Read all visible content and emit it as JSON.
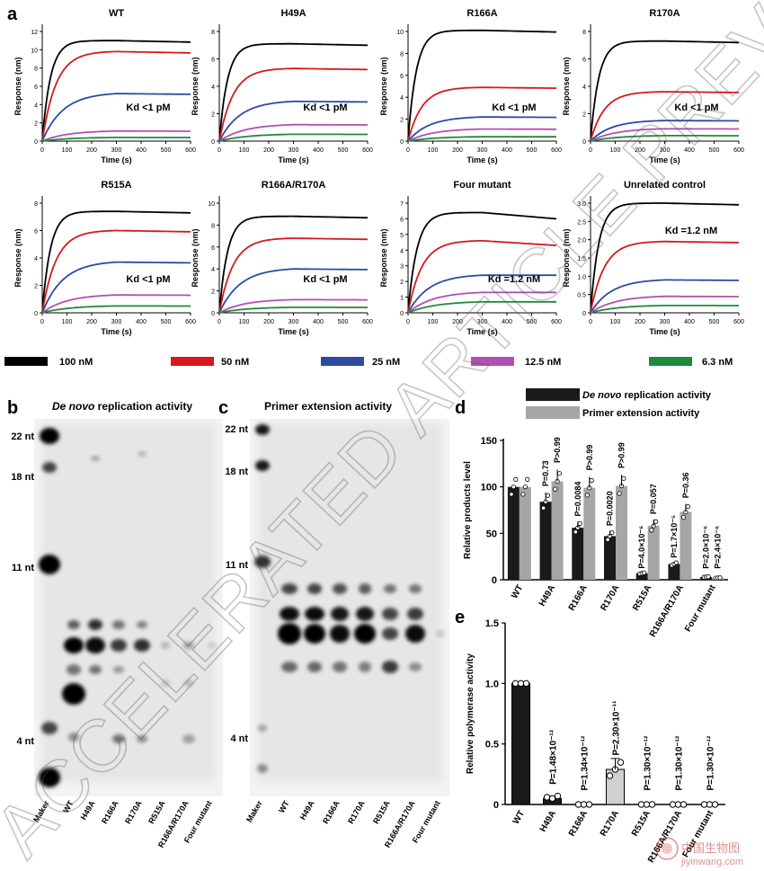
{
  "panel_letters": {
    "a": "a",
    "b": "b",
    "c": "c",
    "d": "d",
    "e": "e"
  },
  "bli_common": {
    "ylabel": "Response (nm)",
    "xlabel": "Time (s)",
    "xticks": [
      0,
      100,
      200,
      300,
      400,
      500,
      600
    ]
  },
  "concentrations": [
    {
      "label": "100 nM",
      "color": "#000000"
    },
    {
      "label": "50 nM",
      "color": "#d7191c"
    },
    {
      "label": "25 nM",
      "color": "#2c4ba0"
    },
    {
      "label": "12.5 nM",
      "color": "#b34fb3"
    },
    {
      "label": "6.3 nM",
      "color": "#1f8a3c"
    }
  ],
  "chart_data": [
    {
      "type": "line",
      "title": "WT",
      "ylim": [
        0,
        12
      ],
      "yticks": [
        0,
        2,
        4,
        6,
        8,
        10,
        12
      ],
      "kd": "Kd <1 pM",
      "series_plateau": [
        11.0,
        9.8,
        5.2,
        1.1,
        0.4
      ]
    },
    {
      "type": "line",
      "title": "H49A",
      "ylim": [
        0,
        8
      ],
      "yticks": [
        0,
        2,
        4,
        6,
        8
      ],
      "kd": "Kd <1 pM",
      "series_plateau": [
        7.1,
        5.3,
        2.9,
        1.2,
        0.5
      ]
    },
    {
      "type": "line",
      "title": "R166A",
      "ylim": [
        0,
        10
      ],
      "yticks": [
        0,
        2,
        4,
        6,
        8,
        10
      ],
      "kd": "Kd <1 pM",
      "series_plateau": [
        10.1,
        4.9,
        2.2,
        1.1,
        0.4
      ]
    },
    {
      "type": "line",
      "title": "R170A",
      "ylim": [
        0,
        8
      ],
      "yticks": [
        0,
        2,
        4,
        6,
        8
      ],
      "kd": "Kd <1 pM",
      "series_plateau": [
        7.3,
        3.6,
        1.5,
        0.9,
        0.4
      ]
    },
    {
      "type": "line",
      "title": "R515A",
      "ylim": [
        0,
        8
      ],
      "yticks": [
        0,
        2,
        4,
        6,
        8
      ],
      "kd": "Kd <1 pM",
      "series_plateau": [
        7.4,
        6.0,
        3.7,
        1.3,
        0.5
      ]
    },
    {
      "type": "line",
      "title": "R166A/R170A",
      "ylim": [
        0,
        10
      ],
      "yticks": [
        0,
        2,
        4,
        6,
        8,
        10
      ],
      "kd": "Kd <1 pM",
      "series_plateau": [
        8.8,
        6.8,
        4.0,
        1.2,
        0.5
      ]
    },
    {
      "type": "line",
      "title": "Four mutant",
      "ylim": [
        0,
        7
      ],
      "yticks": [
        0,
        1,
        2,
        3,
        4,
        5,
        6,
        7
      ],
      "kd": "Kd =1.2 nM",
      "series_peak": [
        6.4,
        4.6,
        2.4,
        1.3,
        0.7
      ],
      "series_end": [
        6.0,
        4.3,
        2.4,
        1.3,
        0.7
      ]
    },
    {
      "type": "line",
      "title": "Unrelated control",
      "ylim": [
        0,
        3.0
      ],
      "yticks": [
        "0",
        "0.5",
        "1.0",
        "1.5",
        "2.0",
        "2.5",
        "3.0"
      ],
      "kd": "Kd =1.2 nM",
      "series_plateau": [
        3.0,
        1.95,
        0.9,
        0.45,
        0.2
      ]
    },
    {
      "type": "bar",
      "panel": "d",
      "ylabel": "Relative products level",
      "ylim": [
        0,
        150
      ],
      "yticks": [
        0,
        50,
        100,
        150
      ],
      "categories": [
        "WT",
        "H49A",
        "R166A",
        "R170A",
        "R515A",
        "R166A/R170A",
        "Four mutant"
      ],
      "series": [
        {
          "name": "De novo replication activity",
          "values": [
            100,
            84,
            56,
            47,
            7,
            17,
            3
          ]
        },
        {
          "name": "Primer extension activity",
          "values": [
            100,
            106,
            99,
            101,
            58,
            73,
            2
          ]
        }
      ],
      "pvalues_denovo": [
        "",
        "P=0.73",
        "P=0.0084",
        "P=0.0020",
        "P=4.0×10⁻⁶",
        "P=1.7×10⁻⁵",
        "P=2.0×10⁻⁶"
      ],
      "pvalues_primer": [
        "",
        "P>0.99",
        "P>0.99",
        "P>0.99",
        "P=0.057",
        "P=0.36",
        "P=2.4×10⁻⁶"
      ]
    },
    {
      "type": "bar",
      "panel": "e",
      "ylabel": "Relative polymerase activity",
      "ylim": [
        0,
        1.5
      ],
      "yticks": [
        "0",
        "0.5",
        "1.0",
        "1.5"
      ],
      "categories": [
        "WT",
        "H49A",
        "R166A",
        "R170A",
        "R515A",
        "R166A/R170A",
        "Four mutant"
      ],
      "values": [
        1.0,
        0.05,
        0.0,
        0.29,
        0.0,
        0.0,
        0.0
      ],
      "pvalues": [
        "",
        "P=1.48×10⁻¹²",
        "P=1.34×10⁻¹²",
        "P=2.30×10⁻¹¹",
        "P=1.30×10⁻¹²",
        "P=1.30×10⁻¹²",
        "P=1.30×10⁻¹²"
      ]
    }
  ],
  "gel_b": {
    "title_italic": "De novo",
    "title_rest": " replication activity",
    "markers": [
      "22 nt",
      "18 nt",
      "11 nt",
      "4 nt"
    ],
    "lanes": [
      "Maker",
      "WT",
      "H49A",
      "R166A",
      "R170A",
      "R515A",
      "R166A/R170A",
      "Four mutant"
    ]
  },
  "gel_c": {
    "title": "Primer extension activity",
    "markers": [
      "22 nt",
      "18 nt",
      "11 nt",
      "4 nt"
    ],
    "lanes": [
      "Maker",
      "WT",
      "H49A",
      "R166A",
      "R170A",
      "R515A",
      "R166A/R170A",
      "Four mutant"
    ]
  },
  "watermark": "ACCELERATED ARTICLE PREVIEW",
  "logo_text": {
    "cn": "中国生物图",
    "en": "jiyinwang.com"
  }
}
